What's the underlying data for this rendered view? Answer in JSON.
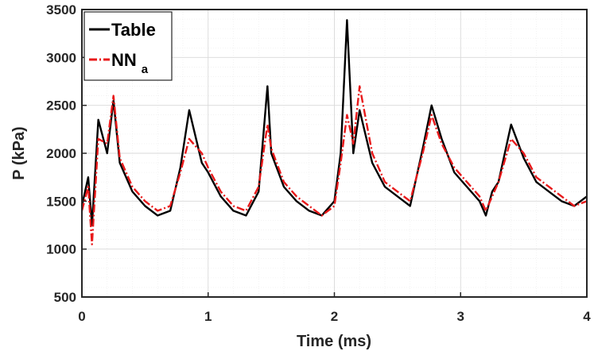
{
  "chart_data": {
    "type": "line",
    "xlabel": "Time (ms)",
    "ylabel": "P (kPa)",
    "xlim": [
      0,
      4
    ],
    "ylim": [
      500,
      3500
    ],
    "xticks": [
      0,
      1,
      2,
      3,
      4
    ],
    "yticks": [
      500,
      1000,
      1500,
      2000,
      2500,
      3000,
      3500
    ],
    "grid": true,
    "legend_position": "top-left",
    "series": [
      {
        "name": "Table",
        "name_sub": "",
        "color": "#000000",
        "style": "solid",
        "x": [
          0,
          0.05,
          0.08,
          0.13,
          0.2,
          0.25,
          0.3,
          0.4,
          0.5,
          0.6,
          0.7,
          0.78,
          0.85,
          0.95,
          1.0,
          1.1,
          1.2,
          1.3,
          1.4,
          1.47,
          1.5,
          1.6,
          1.7,
          1.8,
          1.9,
          2.0,
          2.05,
          2.1,
          2.15,
          2.2,
          2.3,
          2.4,
          2.5,
          2.6,
          2.7,
          2.77,
          2.85,
          2.95,
          3.05,
          3.15,
          3.2,
          3.25,
          3.3,
          3.4,
          3.5,
          3.6,
          3.7,
          3.8,
          3.9,
          4.0
        ],
        "y": [
          1450,
          1750,
          1250,
          2350,
          2000,
          2550,
          1900,
          1600,
          1450,
          1350,
          1400,
          1850,
          2450,
          1900,
          1800,
          1550,
          1400,
          1350,
          1600,
          2700,
          2000,
          1650,
          1500,
          1400,
          1350,
          1500,
          2000,
          3390,
          2000,
          2450,
          1900,
          1650,
          1550,
          1450,
          2050,
          2500,
          2150,
          1800,
          1650,
          1500,
          1350,
          1600,
          1700,
          2300,
          1950,
          1700,
          1600,
          1500,
          1450,
          1550
        ]
      },
      {
        "name": "NN",
        "name_sub": "a",
        "color": "#e8191a",
        "style": "dashdot",
        "x": [
          0,
          0.05,
          0.08,
          0.13,
          0.2,
          0.25,
          0.3,
          0.4,
          0.5,
          0.6,
          0.7,
          0.78,
          0.85,
          0.95,
          1.0,
          1.1,
          1.2,
          1.3,
          1.4,
          1.47,
          1.5,
          1.6,
          1.7,
          1.8,
          1.9,
          2.0,
          2.05,
          2.1,
          2.15,
          2.2,
          2.3,
          2.4,
          2.5,
          2.6,
          2.7,
          2.77,
          2.85,
          2.95,
          3.05,
          3.15,
          3.2,
          3.25,
          3.3,
          3.4,
          3.5,
          3.6,
          3.7,
          3.8,
          3.9,
          4.0
        ],
        "y": [
          1400,
          1650,
          1050,
          2150,
          2100,
          2600,
          1950,
          1650,
          1500,
          1400,
          1450,
          1800,
          2150,
          2000,
          1850,
          1600,
          1450,
          1400,
          1650,
          2300,
          2050,
          1700,
          1550,
          1450,
          1350,
          1450,
          1900,
          2400,
          2100,
          2700,
          2000,
          1700,
          1600,
          1500,
          2000,
          2400,
          2100,
          1850,
          1700,
          1550,
          1400,
          1550,
          1700,
          2150,
          2000,
          1750,
          1650,
          1550,
          1450,
          1500
        ]
      }
    ]
  }
}
